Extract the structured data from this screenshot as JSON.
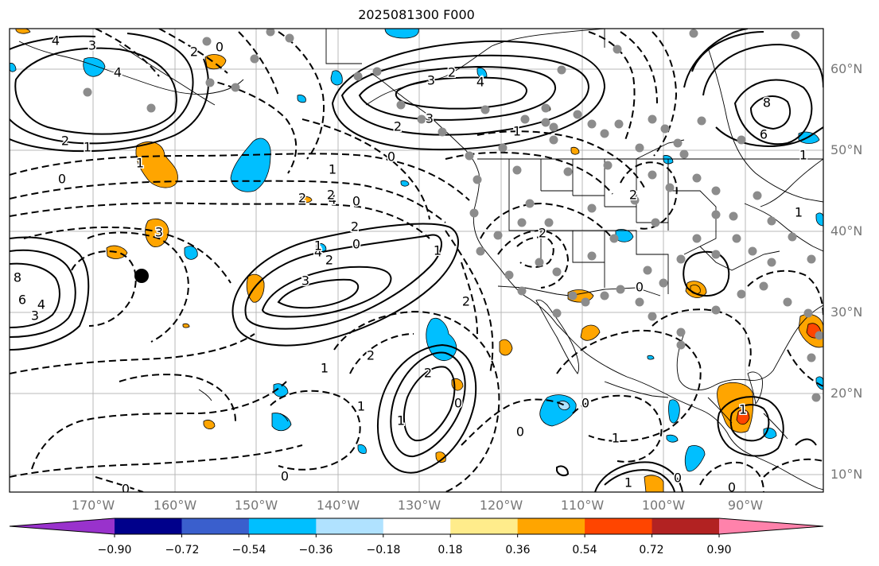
{
  "title": "2025081300 F000",
  "lat_labels": [
    "60°N",
    "50°N",
    "40°N",
    "30°N",
    "20°N",
    "10°N"
  ],
  "lon_labels": [
    "170°W",
    "160°W",
    "150°W",
    "140°W",
    "130°W",
    "120°W",
    "110°W",
    "100°W",
    "90°W"
  ],
  "colorbar": {
    "colors": [
      "#9932cc",
      "#00008b",
      "#3a5fcd",
      "#00bfff",
      "#b0e2ff",
      "#ffffff",
      "#ffec8b",
      "#ffa500",
      "#ff4500",
      "#b22222",
      "#ff82ab"
    ],
    "tick_labels": [
      "−0.90",
      "−0.72",
      "−0.54",
      "−0.36",
      "−0.18",
      "0.18",
      "0.36",
      "0.54",
      "0.72",
      "0.90"
    ]
  },
  "contour_labels": [
    {
      "text": "4"
    },
    {
      "text": "3"
    },
    {
      "text": "4"
    },
    {
      "text": "2"
    },
    {
      "text": "1"
    },
    {
      "text": "0"
    },
    {
      "text": "1"
    },
    {
      "text": "3"
    },
    {
      "text": "2"
    },
    {
      "text": "4"
    },
    {
      "text": "0"
    },
    {
      "text": "4"
    },
    {
      "text": "4"
    },
    {
      "text": "3"
    },
    {
      "text": "2"
    },
    {
      "text": "0"
    },
    {
      "text": "1"
    },
    {
      "text": "2"
    },
    {
      "text": "3"
    },
    {
      "text": "8"
    },
    {
      "text": "6"
    },
    {
      "text": "2"
    },
    {
      "text": "0"
    },
    {
      "text": "2"
    },
    {
      "text": "2"
    },
    {
      "text": "1"
    },
    {
      "text": "3"
    },
    {
      "text": "2"
    },
    {
      "text": "0"
    },
    {
      "text": "1"
    },
    {
      "text": "0"
    },
    {
      "text": "2"
    },
    {
      "text": "1"
    },
    {
      "text": "2"
    },
    {
      "text": "2"
    },
    {
      "text": "1"
    },
    {
      "text": "1"
    },
    {
      "text": "0"
    },
    {
      "text": "2"
    },
    {
      "text": "2"
    },
    {
      "text": "0"
    },
    {
      "text": "1"
    },
    {
      "text": "0"
    },
    {
      "text": "1"
    },
    {
      "text": "0"
    },
    {
      "text": "0"
    },
    {
      "text": "0"
    },
    {
      "text": "0"
    },
    {
      "text": "1"
    },
    {
      "text": "8"
    },
    {
      "text": "6"
    },
    {
      "text": "4"
    },
    {
      "text": "3"
    },
    {
      "text": "1"
    },
    {
      "text": "1"
    },
    {
      "text": "1"
    }
  ]
}
